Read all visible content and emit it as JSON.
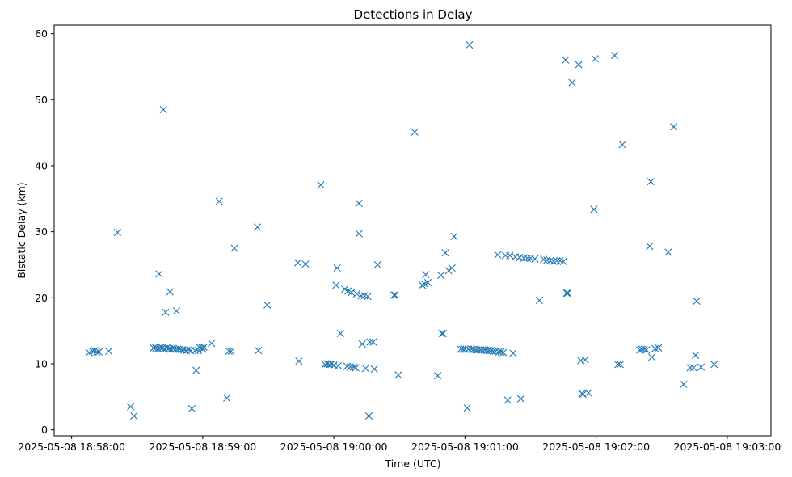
{
  "chart_data": {
    "type": "scatter",
    "title": "Detections in Delay",
    "xlabel": "Time (UTC)",
    "ylabel": "Bistatic Delay (km)",
    "marker": "x",
    "color": "#1f77b4",
    "grid": false,
    "xlim": [
      "2025-05-08 18:57:52",
      "2025-05-08 19:03:20"
    ],
    "ylim": [
      -0.9,
      61.3
    ],
    "x_ticks": [
      "2025-05-08 18:58:00",
      "2025-05-08 18:59:00",
      "2025-05-08 19:00:00",
      "2025-05-08 19:01:00",
      "2025-05-08 19:02:00",
      "2025-05-08 19:03:00"
    ],
    "y_ticks": [
      0,
      10,
      20,
      30,
      40,
      50,
      60
    ],
    "points": [
      [
        "2025-05-08 18:58:08.0",
        11.7
      ],
      [
        "2025-05-08 18:58:09.5",
        11.9
      ],
      [
        "2025-05-08 18:58:10.5",
        12.0
      ],
      [
        "2025-05-08 18:58:11.5",
        11.8
      ],
      [
        "2025-05-08 18:58:12.5",
        11.8
      ],
      [
        "2025-05-08 18:58:17.0",
        11.9
      ],
      [
        "2025-05-08 18:58:21.0",
        29.9
      ],
      [
        "2025-05-08 18:58:27.0",
        3.5
      ],
      [
        "2025-05-08 18:58:28.5",
        2.1
      ],
      [
        "2025-05-08 18:58:37.5",
        12.4
      ],
      [
        "2025-05-08 18:58:38.5",
        12.4
      ],
      [
        "2025-05-08 18:58:39.5",
        12.3
      ],
      [
        "2025-05-08 18:58:40.0",
        23.6
      ],
      [
        "2025-05-08 18:58:40.5",
        12.4
      ],
      [
        "2025-05-08 18:58:41.5",
        12.4
      ],
      [
        "2025-05-08 18:58:42.0",
        48.5
      ],
      [
        "2025-05-08 18:58:42.5",
        12.3
      ],
      [
        "2025-05-08 18:58:43.0",
        17.8
      ],
      [
        "2025-05-08 18:58:43.5",
        12.4
      ],
      [
        "2025-05-08 18:58:44.5",
        12.3
      ],
      [
        "2025-05-08 18:58:45.0",
        20.9
      ],
      [
        "2025-05-08 18:58:45.5",
        12.2
      ],
      [
        "2025-05-08 18:58:46.5",
        12.3
      ],
      [
        "2025-05-08 18:58:47.5",
        12.2
      ],
      [
        "2025-05-08 18:58:48.0",
        18.0
      ],
      [
        "2025-05-08 18:58:48.5",
        12.2
      ],
      [
        "2025-05-08 18:58:49.5",
        12.2
      ],
      [
        "2025-05-08 18:58:50.5",
        12.1
      ],
      [
        "2025-05-08 18:58:51.5",
        12.1
      ],
      [
        "2025-05-08 18:58:52.5",
        12.0
      ],
      [
        "2025-05-08 18:58:53.5",
        12.1
      ],
      [
        "2025-05-08 18:58:54.5",
        12.0
      ],
      [
        "2025-05-08 18:58:55.0",
        3.2
      ],
      [
        "2025-05-08 18:58:56.5",
        12.0
      ],
      [
        "2025-05-08 18:58:57.0",
        9.0
      ],
      [
        "2025-05-08 18:58:58.0",
        12.0
      ],
      [
        "2025-05-08 18:58:58.5",
        12.5
      ],
      [
        "2025-05-08 18:58:59.5",
        12.5
      ],
      [
        "2025-05-08 18:59:00.0",
        12.2
      ],
      [
        "2025-05-08 18:59:00.5",
        12.5
      ],
      [
        "2025-05-08 18:59:04.0",
        13.1
      ],
      [
        "2025-05-08 18:59:07.5",
        34.6
      ],
      [
        "2025-05-08 18:59:11.0",
        4.8
      ],
      [
        "2025-05-08 18:59:12.0",
        11.9
      ],
      [
        "2025-05-08 18:59:13.0",
        11.9
      ],
      [
        "2025-05-08 18:59:14.5",
        27.5
      ],
      [
        "2025-05-08 18:59:25.0",
        30.7
      ],
      [
        "2025-05-08 18:59:25.5",
        12.0
      ],
      [
        "2025-05-08 18:59:29.5",
        18.9
      ],
      [
        "2025-05-08 18:59:43.5",
        25.3
      ],
      [
        "2025-05-08 18:59:44.0",
        10.4
      ],
      [
        "2025-05-08 18:59:47.0",
        25.1
      ],
      [
        "2025-05-08 18:59:54.0",
        37.1
      ],
      [
        "2025-05-08 18:59:56.0",
        9.9
      ],
      [
        "2025-05-08 18:59:57.0",
        10.0
      ],
      [
        "2025-05-08 18:59:58.0",
        9.9
      ],
      [
        "2025-05-08 18:59:59.0",
        10.0
      ],
      [
        "2025-05-08 19:00:00.0",
        9.8
      ],
      [
        "2025-05-08 19:00:01.0",
        21.9
      ],
      [
        "2025-05-08 19:00:01.5",
        24.5
      ],
      [
        "2025-05-08 19:00:02.0",
        9.7
      ],
      [
        "2025-05-08 19:00:03.0",
        14.6
      ],
      [
        "2025-05-08 19:00:05.0",
        21.3
      ],
      [
        "2025-05-08 19:00:06.5",
        21.0
      ],
      [
        "2025-05-08 19:00:08.0",
        20.8
      ],
      [
        "2025-05-08 19:00:06.0",
        9.6
      ],
      [
        "2025-05-08 19:00:07.5",
        9.5
      ],
      [
        "2025-05-08 19:00:09.0",
        9.5
      ],
      [
        "2025-05-08 19:00:10.5",
        20.6
      ],
      [
        "2025-05-08 19:00:10.0",
        9.4
      ],
      [
        "2025-05-08 19:00:12.5",
        20.3
      ],
      [
        "2025-05-08 19:00:11.5",
        34.3
      ],
      [
        "2025-05-08 19:00:11.5",
        29.7
      ],
      [
        "2025-05-08 19:00:13.0",
        13.0
      ],
      [
        "2025-05-08 19:00:14.0",
        20.3
      ],
      [
        "2025-05-08 19:00:14.5",
        9.3
      ],
      [
        "2025-05-08 19:00:15.5",
        20.2
      ],
      [
        "2025-05-08 19:00:16.0",
        2.1
      ],
      [
        "2025-05-08 19:00:16.5",
        13.3
      ],
      [
        "2025-05-08 19:00:18.0",
        13.3
      ],
      [
        "2025-05-08 19:00:18.5",
        9.2
      ],
      [
        "2025-05-08 19:00:20.0",
        25.0
      ],
      [
        "2025-05-08 19:00:27.5",
        20.4
      ],
      [
        "2025-05-08 19:00:28.0",
        20.4
      ],
      [
        "2025-05-08 19:00:29.5",
        8.3
      ],
      [
        "2025-05-08 19:00:37.0",
        45.1
      ],
      [
        "2025-05-08 19:00:40.5",
        21.9
      ],
      [
        "2025-05-08 19:00:41.5",
        22.1
      ],
      [
        "2025-05-08 19:00:42.0",
        23.5
      ],
      [
        "2025-05-08 19:00:43.0",
        22.3
      ],
      [
        "2025-05-08 19:00:47.5",
        8.2
      ],
      [
        "2025-05-08 19:00:49.0",
        23.4
      ],
      [
        "2025-05-08 19:00:49.5",
        14.6
      ],
      [
        "2025-05-08 19:00:50.0",
        14.6
      ],
      [
        "2025-05-08 19:00:51.0",
        26.8
      ],
      [
        "2025-05-08 19:00:52.5",
        24.1
      ],
      [
        "2025-05-08 19:00:54.0",
        24.5
      ],
      [
        "2025-05-08 19:00:55.0",
        29.3
      ],
      [
        "2025-05-08 19:00:58.0",
        12.2
      ],
      [
        "2025-05-08 19:00:59.0",
        12.2
      ],
      [
        "2025-05-08 19:01:00.0",
        12.2
      ],
      [
        "2025-05-08 19:01:01.0",
        3.3
      ],
      [
        "2025-05-08 19:01:01.5",
        12.2
      ],
      [
        "2025-05-08 19:01:02.0",
        58.3
      ],
      [
        "2025-05-08 19:01:03.0",
        12.2
      ],
      [
        "2025-05-08 19:01:04.0",
        12.2
      ],
      [
        "2025-05-08 19:01:05.0",
        12.1
      ],
      [
        "2025-05-08 19:01:06.0",
        12.1
      ],
      [
        "2025-05-08 19:01:07.0",
        12.1
      ],
      [
        "2025-05-08 19:01:08.0",
        12.1
      ],
      [
        "2025-05-08 19:01:09.0",
        12.1
      ],
      [
        "2025-05-08 19:01:10.0",
        12.0
      ],
      [
        "2025-05-08 19:01:11.0",
        12.0
      ],
      [
        "2025-05-08 19:01:12.0",
        12.0
      ],
      [
        "2025-05-08 19:01:13.0",
        11.9
      ],
      [
        "2025-05-08 19:01:14.0",
        11.9
      ],
      [
        "2025-05-08 19:01:15.0",
        26.5
      ],
      [
        "2025-05-08 19:01:15.5",
        11.8
      ],
      [
        "2025-05-08 19:01:16.5",
        11.8
      ],
      [
        "2025-05-08 19:01:17.5",
        11.7
      ],
      [
        "2025-05-08 19:01:18.5",
        26.4
      ],
      [
        "2025-05-08 19:01:22.0",
        11.6
      ],
      [
        "2025-05-08 19:01:19.5",
        4.5
      ],
      [
        "2025-05-08 19:01:20.5",
        26.4
      ],
      [
        "2025-05-08 19:01:25.5",
        4.7
      ],
      [
        "2025-05-08 19:01:23.0",
        26.2
      ],
      [
        "2025-05-08 19:01:25.0",
        26.1
      ],
      [
        "2025-05-08 19:01:27.0",
        26.0
      ],
      [
        "2025-05-08 19:01:28.5",
        26.0
      ],
      [
        "2025-05-08 19:01:30.0",
        26.0
      ],
      [
        "2025-05-08 19:01:32.0",
        25.9
      ],
      [
        "2025-05-08 19:01:34.0",
        19.6
      ],
      [
        "2025-05-08 19:01:36.0",
        25.8
      ],
      [
        "2025-05-08 19:01:37.5",
        25.7
      ],
      [
        "2025-05-08 19:01:39.0",
        25.6
      ],
      [
        "2025-05-08 19:01:40.5",
        25.5
      ],
      [
        "2025-05-08 19:01:42.0",
        25.6
      ],
      [
        "2025-05-08 19:01:43.5",
        25.6
      ],
      [
        "2025-05-08 19:01:45.0",
        25.5
      ],
      [
        "2025-05-08 19:01:46.0",
        56.0
      ],
      [
        "2025-05-08 19:01:46.5",
        20.7
      ],
      [
        "2025-05-08 19:01:47.0",
        20.7
      ],
      [
        "2025-05-08 19:01:49.0",
        52.6
      ],
      [
        "2025-05-08 19:01:52.0",
        55.3
      ],
      [
        "2025-05-08 19:01:53.0",
        10.5
      ],
      [
        "2025-05-08 19:01:53.5",
        5.5
      ],
      [
        "2025-05-08 19:01:54.0",
        5.4
      ],
      [
        "2025-05-08 19:01:55.0",
        10.6
      ],
      [
        "2025-05-08 19:01:56.5",
        5.6
      ],
      [
        "2025-05-08 19:01:59.0",
        33.4
      ],
      [
        "2025-05-08 19:01:59.5",
        56.2
      ],
      [
        "2025-05-08 19:02:08.5",
        56.7
      ],
      [
        "2025-05-08 19:02:10.0",
        9.9
      ],
      [
        "2025-05-08 19:02:11.0",
        9.9
      ],
      [
        "2025-05-08 19:02:12.0",
        43.2
      ],
      [
        "2025-05-08 19:02:20.0",
        12.1
      ],
      [
        "2025-05-08 19:02:21.0",
        12.2
      ],
      [
        "2025-05-08 19:02:22.0",
        12.2
      ],
      [
        "2025-05-08 19:02:23.0",
        12.1
      ],
      [
        "2025-05-08 19:02:24.5",
        27.8
      ],
      [
        "2025-05-08 19:02:25.0",
        37.6
      ],
      [
        "2025-05-08 19:02:25.5",
        11.0
      ],
      [
        "2025-05-08 19:02:27.0",
        12.3
      ],
      [
        "2025-05-08 19:02:28.5",
        12.4
      ],
      [
        "2025-05-08 19:02:33.0",
        26.9
      ],
      [
        "2025-05-08 19:02:35.5",
        45.9
      ],
      [
        "2025-05-08 19:02:40.0",
        6.9
      ],
      [
        "2025-05-08 19:02:43.0",
        9.4
      ],
      [
        "2025-05-08 19:02:44.5",
        9.4
      ],
      [
        "2025-05-08 19:02:45.5",
        11.3
      ],
      [
        "2025-05-08 19:02:46.0",
        19.5
      ],
      [
        "2025-05-08 19:02:48.0",
        9.5
      ],
      [
        "2025-05-08 19:02:54.0",
        9.9
      ]
    ]
  }
}
